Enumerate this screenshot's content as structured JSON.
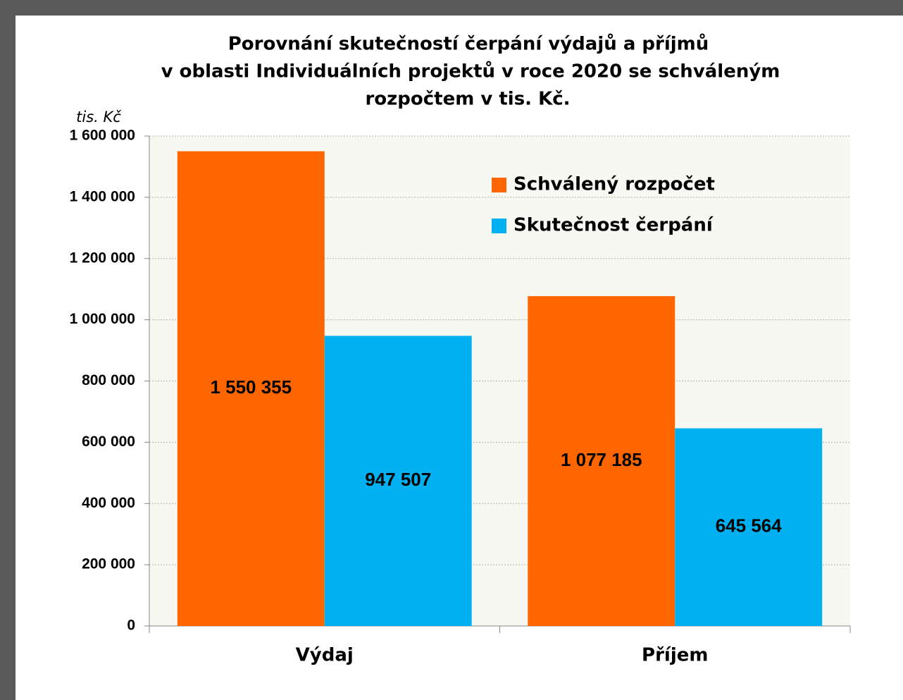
{
  "chart_data": {
    "type": "bar",
    "title": [
      "Porovnání skutečností čerpání výdajů a příjmů",
      "v oblasti Individuálních  projektů v roce 2020 se schváleným",
      "rozpočtem v tis. Kč."
    ],
    "y_label": "tis. Kč",
    "categories": [
      "Výdaj",
      "Příjem"
    ],
    "series": [
      {
        "name": "Schválený rozpočet",
        "color": "#ff6600",
        "values": [
          1550355,
          1077185
        ],
        "value_labels": [
          "1 550 355",
          "1 077 185"
        ]
      },
      {
        "name": "Skutečnost čerpání",
        "color": "#00b0f0",
        "values": [
          947507,
          645564
        ],
        "value_labels": [
          "947 507",
          "645 564"
        ]
      }
    ],
    "ylim": [
      0,
      1600000
    ],
    "yticks": [
      0,
      {
        "value": 200000,
        "label": "200 000"
      },
      {
        "value": 400000,
        "label": "400 000"
      },
      {
        "value": 600000,
        "label": "600 000"
      },
      {
        "value": 800000,
        "label": "800 000"
      },
      {
        "value": 1000000,
        "label": "1 000 000"
      },
      {
        "value": 1200000,
        "label": "1 200 000"
      },
      {
        "value": 1400000,
        "label": "1 400 000"
      },
      {
        "value": 1600000,
        "label": "1 600 000"
      }
    ],
    "grid": true,
    "legend": "upper right"
  }
}
